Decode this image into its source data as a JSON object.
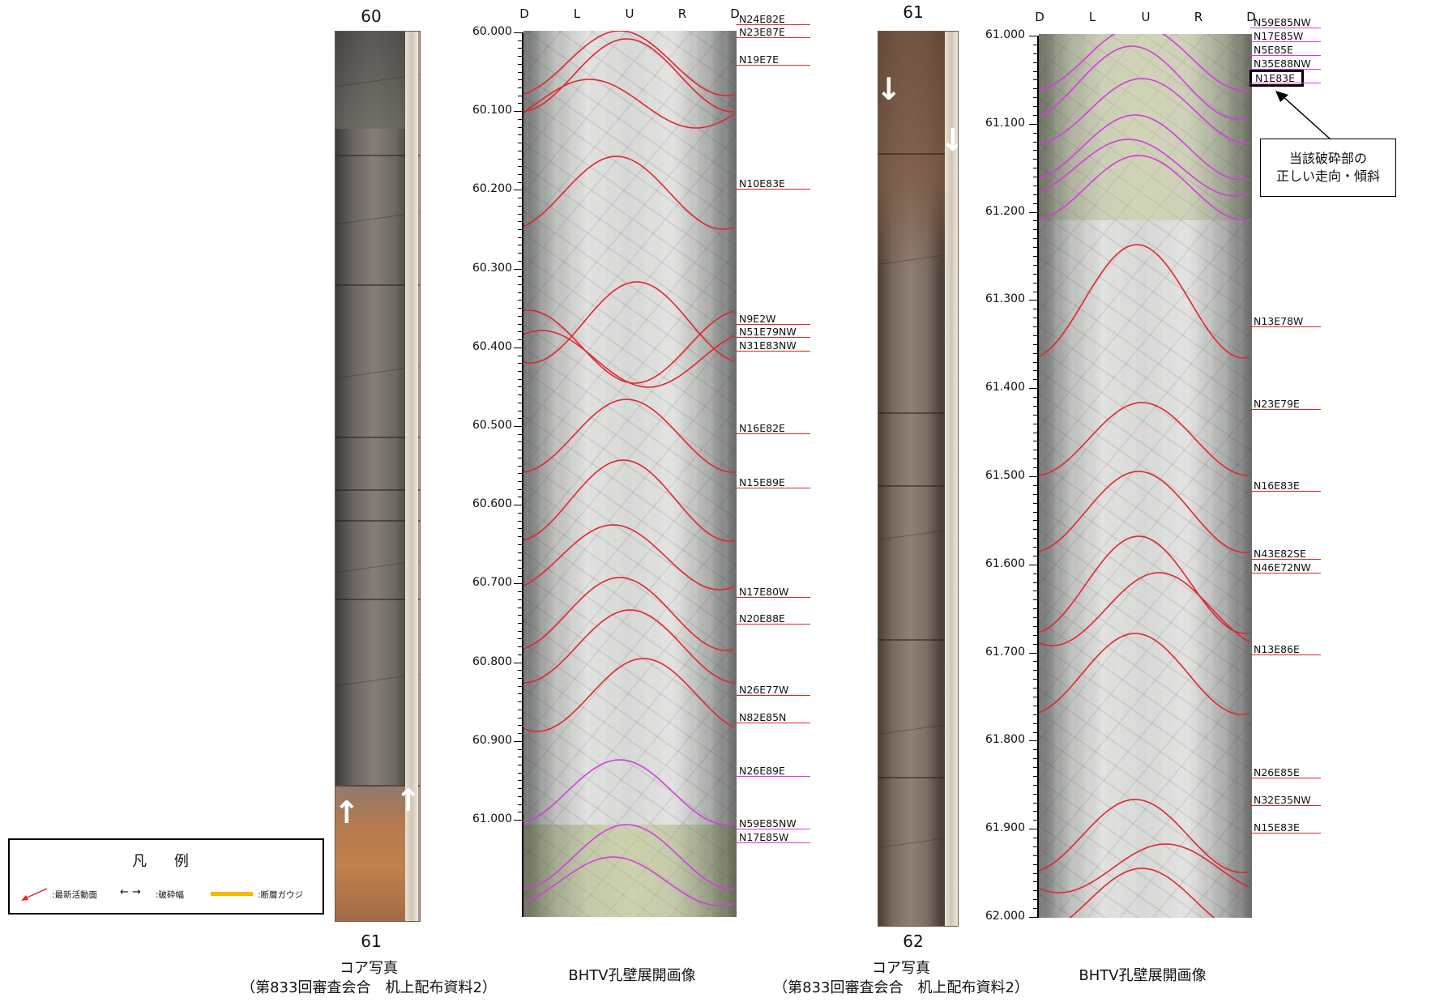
{
  "panels": [
    {
      "core_top_number": "60",
      "core_bottom_number": "61",
      "core_caption_line1": "コア写真",
      "core_caption_line2": "（第833回審査会合　机上配布資料2）",
      "bhtv_caption": "BHTV孔壁展開画像",
      "directions": [
        "D",
        "L",
        "U",
        "R",
        "D"
      ],
      "depth_labels": [
        "60.000",
        "60.100",
        "60.200",
        "60.300",
        "60.400",
        "60.500",
        "60.600",
        "60.700",
        "60.800",
        "60.900",
        "61.000"
      ],
      "fracture_labels": [
        {
          "text": "N24E82E",
          "color": "red"
        },
        {
          "text": "N23E87E",
          "color": "red"
        },
        {
          "text": "N19E7E",
          "color": "red"
        },
        {
          "text": "N10E83E",
          "color": "red"
        },
        {
          "text": "N9E2W",
          "color": "red"
        },
        {
          "text": "N51E79NW",
          "color": "red"
        },
        {
          "text": "N31E83NW",
          "color": "red"
        },
        {
          "text": "N16E82E",
          "color": "red"
        },
        {
          "text": "N15E89E",
          "color": "red"
        },
        {
          "text": "N17E80W",
          "color": "red"
        },
        {
          "text": "N20E88E",
          "color": "red"
        },
        {
          "text": "N26E77W",
          "color": "red"
        },
        {
          "text": "N82E85N",
          "color": "red"
        },
        {
          "text": "N26E89E",
          "color": "magenta"
        },
        {
          "text": "N59E85NW",
          "color": "magenta"
        },
        {
          "text": "N17E85W",
          "color": "magenta"
        }
      ]
    },
    {
      "core_top_number": "61",
      "core_bottom_number": "62",
      "core_caption_line1": "コア写真",
      "core_caption_line2": "（第833回審査会合　机上配布資料2）",
      "bhtv_caption": "BHTV孔壁展開画像",
      "directions": [
        "D",
        "L",
        "U",
        "R",
        "D"
      ],
      "depth_labels": [
        "61.000",
        "61.100",
        "61.200",
        "61.300",
        "61.400",
        "61.500",
        "61.600",
        "61.700",
        "61.800",
        "61.900",
        "62.000"
      ],
      "fracture_labels": [
        {
          "text": "N59E85NW",
          "color": "magenta"
        },
        {
          "text": "N17E85W",
          "color": "magenta"
        },
        {
          "text": "N5E85E",
          "color": "magenta"
        },
        {
          "text": "N35E88NW",
          "color": "magenta"
        },
        {
          "text": "N1E83E",
          "color": "magenta",
          "boxed": true
        },
        {
          "text": "N13E78W",
          "color": "red"
        },
        {
          "text": "N23E79E",
          "color": "red"
        },
        {
          "text": "N16E83E",
          "color": "red"
        },
        {
          "text": "N43E82SE",
          "color": "red"
        },
        {
          "text": "N46E72NW",
          "color": "red"
        },
        {
          "text": "N13E86E",
          "color": "red"
        },
        {
          "text": "N26E85E",
          "color": "red"
        },
        {
          "text": "N32E35NW",
          "color": "red"
        },
        {
          "text": "N15E83E",
          "color": "red"
        }
      ]
    }
  ],
  "callout": {
    "line1": "当該破砕部の",
    "line2": "正しい走向・傾斜"
  },
  "legend": {
    "title": "凡 例",
    "items": [
      {
        "symbol": "red-arrow",
        "label": ":最新活動面"
      },
      {
        "symbol": "double-arrow",
        "label": ":破砕幅"
      },
      {
        "symbol": "orange-bar",
        "label": ":断層ガウジ"
      }
    ]
  },
  "colors": {
    "fracture_red": "#e0262b",
    "fracture_magenta": "#d63be0",
    "gouge_orange": "#f5b800",
    "legend_arrow_red": "#e0262b"
  }
}
